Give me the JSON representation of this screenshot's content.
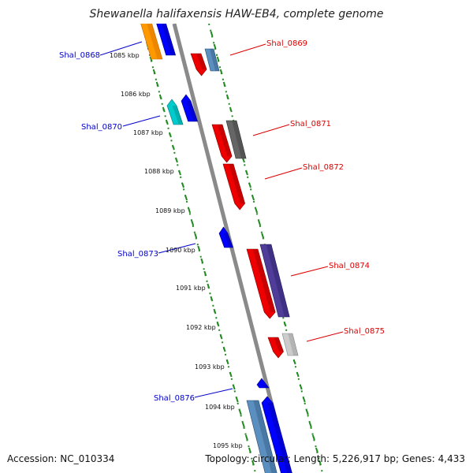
{
  "title": "Shewanella halifaxensis HAW-EB4, complete genome",
  "accession": "Accession: NC_010334",
  "topology": "Topology: circular; Length: 5,226,917 bp; Genes: 4,433",
  "ticks": [
    "1085 kbp",
    "1086 kbp",
    "1087 kbp",
    "1088 kbp",
    "1089 kbp",
    "1090 kbp",
    "1091 kbp",
    "1092 kbp",
    "1093 kbp",
    "1094 kbp",
    "1095 kbp"
  ],
  "gene_labels": [
    {
      "name": "Shal_0868",
      "color": "#0000cc"
    },
    {
      "name": "Shal_0869",
      "color": "#dd0000"
    },
    {
      "name": "Shal_0870",
      "color": "#0000cc"
    },
    {
      "name": "Shal_0871",
      "color": "#dd0000"
    },
    {
      "name": "Shal_0872",
      "color": "#dd0000"
    },
    {
      "name": "Shal_0873",
      "color": "#0000cc"
    },
    {
      "name": "Shal_0874",
      "color": "#dd0000"
    },
    {
      "name": "Shal_0875",
      "color": "#dd0000"
    },
    {
      "name": "Shal_0876",
      "color": "#0000cc"
    }
  ]
}
